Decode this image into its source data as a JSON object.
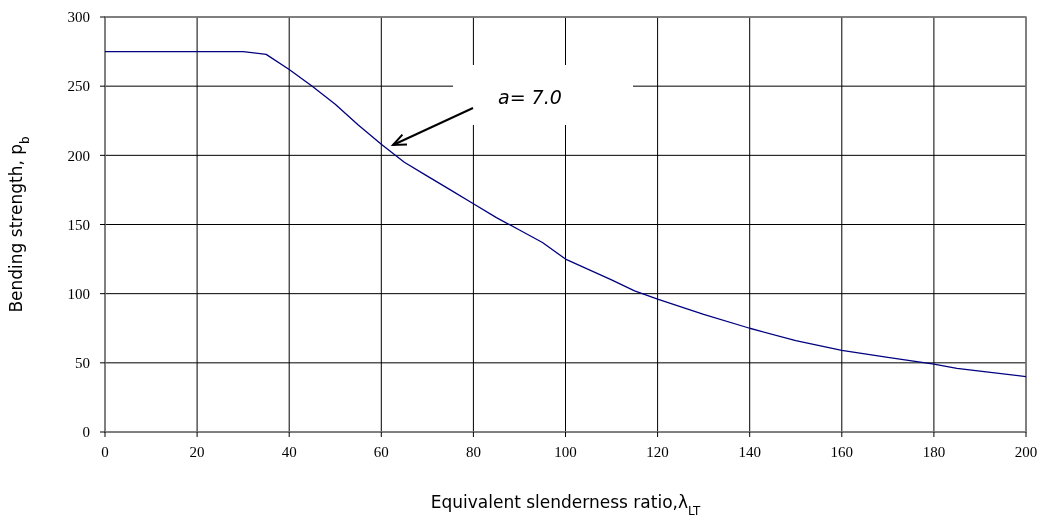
{
  "chart_data": {
    "type": "line",
    "xlabel": "Equivalent slenderness ratio,λ$_{LT}$",
    "ylabel": "Bending strength, p$_{b}$",
    "x": [
      0,
      30,
      35,
      40,
      45,
      50,
      55,
      60,
      65,
      70,
      75,
      80,
      85,
      90,
      95,
      100,
      110,
      115,
      120,
      130,
      140,
      150,
      160,
      170,
      180,
      185,
      190,
      200
    ],
    "series": [
      {
        "color": "#000080",
        "values": [
          275,
          275,
          273,
          262,
          250,
          237,
          222,
          208,
          195,
          185,
          175,
          165,
          155,
          146,
          137,
          125,
          110,
          102,
          96,
          85,
          75,
          66,
          59,
          54,
          49,
          46,
          44,
          40
        ]
      }
    ],
    "xlim": [
      0,
      200
    ],
    "xticks": [
      0,
      20,
      40,
      60,
      80,
      100,
      120,
      140,
      160,
      180,
      200
    ],
    "ylim": [
      0,
      300
    ],
    "yticks": [
      0,
      50,
      100,
      150,
      200,
      250,
      300
    ],
    "grid": true,
    "marker": "none",
    "line_style": "solid",
    "annotations": [
      "a= 7.0"
    ]
  }
}
